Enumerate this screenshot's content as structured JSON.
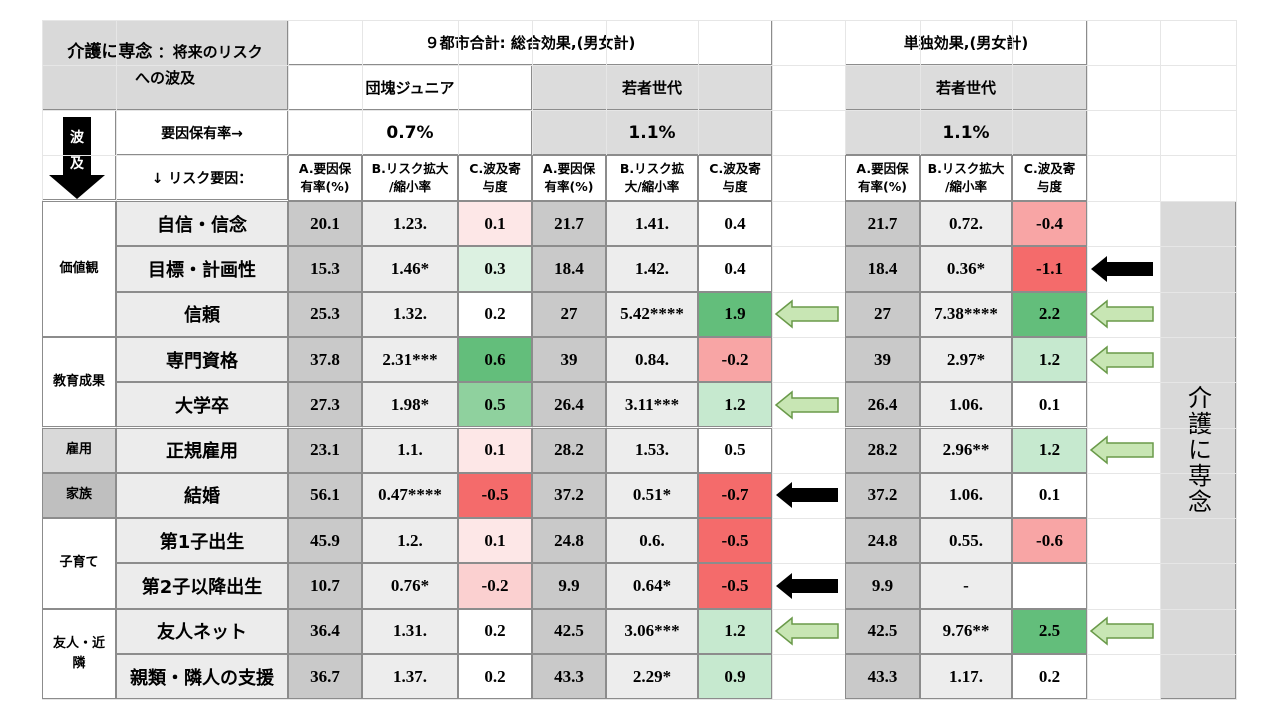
{
  "corner": {
    "title_main": "介護に専念",
    "title_rest": "：将来のリスク",
    "title_line2": "への波及"
  },
  "wave_label": {
    "char1": "波",
    "char2": "及"
  },
  "panels": {
    "total": {
      "title": "９都市合計: 総合効果,(男女計)",
      "groups": [
        "団塊ジュニア",
        "若者世代"
      ]
    },
    "single": {
      "title": "単独効果,(男女計)",
      "groups": [
        "若者世代"
      ]
    }
  },
  "row_labels": {
    "rate": "要因保有率→",
    "risk": "↓ リスク要因："
  },
  "rates": {
    "dankai": "0.7%",
    "wakamono": "1.1%",
    "single": "1.1%"
  },
  "subheaders": [
    "A.要因保\n有率(%)",
    "B.リスク拡大\n/縮小率",
    "C.波及寄\n与度"
  ],
  "subheaders_b_alt": "B.リスク拡\n大/縮小率",
  "side_label": "介護に専念",
  "groups": [
    {
      "name": "価値観",
      "span": 3
    },
    {
      "name": "教育成果",
      "span": 2
    },
    {
      "name": "雇用",
      "span": 1
    },
    {
      "name": "家族",
      "span": 1
    },
    {
      "name": "子育て",
      "span": 2
    },
    {
      "name": "友人・近\n隣",
      "span": 2
    }
  ],
  "rows": [
    {
      "factor": "自信・信念",
      "dj": [
        "20.1",
        "1.23.",
        "0.1"
      ],
      "wk": [
        "21.7",
        "1.41.",
        "0.4"
      ],
      "sg": [
        "21.7",
        "0.72.",
        "-0.4"
      ]
    },
    {
      "factor": "目標・計画性",
      "dj": [
        "15.3",
        "1.46*",
        "0.3"
      ],
      "wk": [
        "18.4",
        "1.42.",
        "0.4"
      ],
      "sg": [
        "18.4",
        "0.36*",
        "-1.1"
      ]
    },
    {
      "factor": "信頼",
      "dj": [
        "25.3",
        "1.32.",
        "0.2"
      ],
      "wk": [
        "27",
        "5.42****",
        "1.9"
      ],
      "sg": [
        "27",
        "7.38****",
        "2.2"
      ]
    },
    {
      "factor": "専門資格",
      "dj": [
        "37.8",
        "2.31***",
        "0.6"
      ],
      "wk": [
        "39",
        "0.84.",
        "-0.2"
      ],
      "sg": [
        "39",
        "2.97*",
        "1.2"
      ]
    },
    {
      "factor": "大学卒",
      "dj": [
        "27.3",
        "1.98*",
        "0.5"
      ],
      "wk": [
        "26.4",
        "3.11***",
        "1.2"
      ],
      "sg": [
        "26.4",
        "1.06.",
        "0.1"
      ]
    },
    {
      "factor": "正規雇用",
      "dj": [
        "23.1",
        "1.1.",
        "0.1"
      ],
      "wk": [
        "28.2",
        "1.53.",
        "0.5"
      ],
      "sg": [
        "28.2",
        "2.96**",
        "1.2"
      ]
    },
    {
      "factor": "結婚",
      "dj": [
        "56.1",
        "0.47****",
        "-0.5"
      ],
      "wk": [
        "37.2",
        "0.51*",
        "-0.7"
      ],
      "sg": [
        "37.2",
        "1.06.",
        "0.1"
      ]
    },
    {
      "factor": "第1子出生",
      "dj": [
        "45.9",
        "1.2.",
        "0.1"
      ],
      "wk": [
        "24.8",
        "0.6.",
        "-0.5"
      ],
      "sg": [
        "24.8",
        "0.55.",
        "-0.6"
      ]
    },
    {
      "factor": "第2子以降出生",
      "dj": [
        "10.7",
        "0.76*",
        "-0.2"
      ],
      "wk": [
        "9.9",
        "0.64*",
        "-0.5"
      ],
      "sg": [
        "9.9",
        "-",
        ""
      ]
    },
    {
      "factor": "友人ネット",
      "dj": [
        "36.4",
        "1.31.",
        "0.2"
      ],
      "wk": [
        "42.5",
        "3.06***",
        "1.2"
      ],
      "sg": [
        "42.5",
        "9.76**",
        "2.5"
      ]
    },
    {
      "factor": "親類・隣人の支援",
      "dj": [
        "36.7",
        "1.37.",
        "0.2"
      ],
      "wk": [
        "43.3",
        "2.29*",
        "0.9"
      ],
      "sg": [
        "43.3",
        "1.17.",
        "0.2"
      ]
    }
  ],
  "arrows": [
    {
      "row": 1,
      "col": "single",
      "kind": "black"
    },
    {
      "row": 2,
      "col": "total",
      "kind": "green"
    },
    {
      "row": 2,
      "col": "single",
      "kind": "green"
    },
    {
      "row": 3,
      "col": "single",
      "kind": "green"
    },
    {
      "row": 4,
      "col": "total",
      "kind": "green"
    },
    {
      "row": 5,
      "col": "single",
      "kind": "green"
    },
    {
      "row": 6,
      "col": "total",
      "kind": "black"
    },
    {
      "row": 8,
      "col": "total",
      "kind": "black"
    },
    {
      "row": 9,
      "col": "total",
      "kind": "green"
    },
    {
      "row": 9,
      "col": "single",
      "kind": "green"
    }
  ],
  "colors": {
    "green_strong": "#63be7b",
    "green_mid": "#8fd19e",
    "green_light": "#c6e9cf",
    "green_pale": "#dcf1e1",
    "red_strong": "#f46b6b",
    "red_mid": "#f8a5a5",
    "red_light": "#fbd0d0",
    "red_pale": "#fde7e7",
    "arrow_green_fill": "#c8e6b4",
    "arrow_green_stroke": "#6a9a4a"
  }
}
